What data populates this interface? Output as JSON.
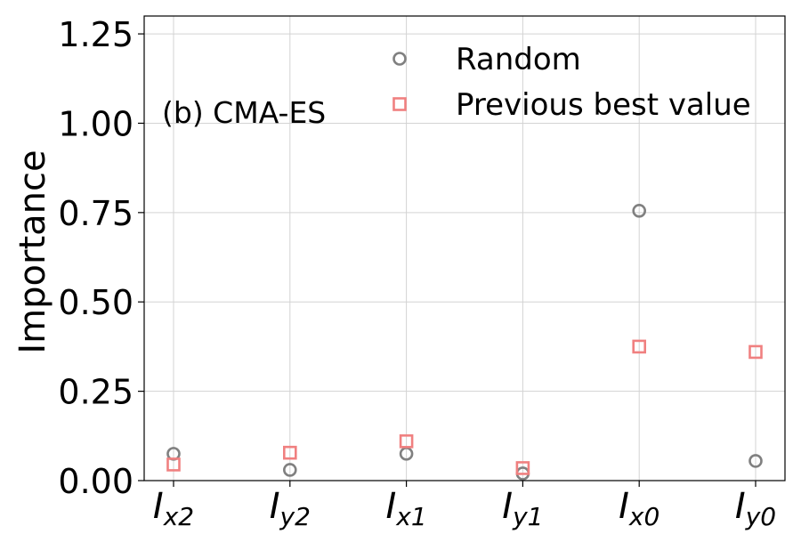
{
  "chart_data": {
    "type": "scatter",
    "annotation": "(b) CMA-ES",
    "ylabel": "Importance",
    "xlabel": "",
    "ylim": [
      0,
      1.3
    ],
    "yticks": [
      "0.00",
      "0.25",
      "0.50",
      "0.75",
      "1.00",
      "1.25"
    ],
    "ytick_values": [
      0,
      0.25,
      0.5,
      0.75,
      1.0,
      1.25
    ],
    "categories": [
      {
        "base": "I",
        "sub": "x2"
      },
      {
        "base": "I",
        "sub": "y2"
      },
      {
        "base": "I",
        "sub": "x1"
      },
      {
        "base": "I",
        "sub": "y1"
      },
      {
        "base": "I",
        "sub": "x0"
      },
      {
        "base": "I",
        "sub": "y0"
      }
    ],
    "grid": true,
    "legend_position": "top-right",
    "series": [
      {
        "name": "Random",
        "marker": "circle",
        "color": "#808080",
        "values": [
          0.075,
          0.03,
          0.075,
          0.02,
          0.755,
          0.055
        ]
      },
      {
        "name": "Previous best value",
        "marker": "square",
        "color": "#f08080",
        "values": [
          0.045,
          0.078,
          0.11,
          0.035,
          0.375,
          0.36
        ]
      }
    ]
  }
}
